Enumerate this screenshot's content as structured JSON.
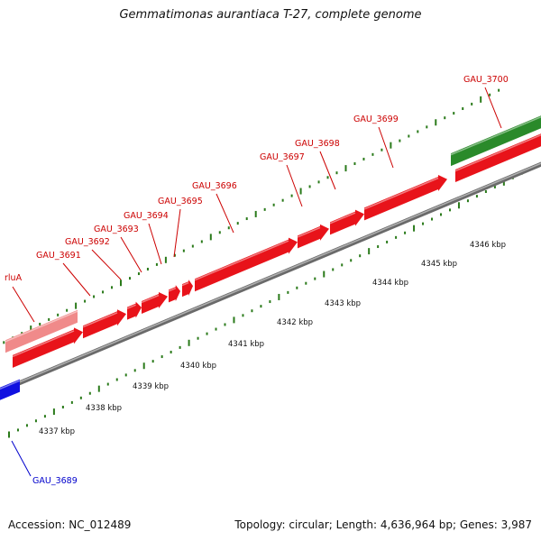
{
  "title": "Gemmatimonas aurantiaca T-27, complete genome",
  "footer": {
    "accession": "Accession: NC_012489",
    "summary": "Topology: circular; Length: 4,636,964 bp; Genes: 3,987"
  },
  "colors": {
    "forward_gene": "#e8131a",
    "forward_gene_light": "#f08a8a",
    "rna_gene": "#2a8a2a",
    "reverse_gene": "#1010e0",
    "forward_label": "#cc0000",
    "reverse_label": "#0000cc",
    "tick": "#2a7a1a",
    "backbone": "#8a8a8a"
  },
  "gene_labels": [
    {
      "text": "rluA",
      "strand": "forward"
    },
    {
      "text": "GAU_3691",
      "strand": "forward"
    },
    {
      "text": "GAU_3692",
      "strand": "forward"
    },
    {
      "text": "GAU_3693",
      "strand": "forward"
    },
    {
      "text": "GAU_3694",
      "strand": "forward"
    },
    {
      "text": "GAU_3695",
      "strand": "forward"
    },
    {
      "text": "GAU_3696",
      "strand": "forward"
    },
    {
      "text": "GAU_3697",
      "strand": "forward"
    },
    {
      "text": "GAU_3698",
      "strand": "forward"
    },
    {
      "text": "GAU_3699",
      "strand": "forward"
    },
    {
      "text": "GAU_3700",
      "strand": "forward"
    },
    {
      "text": "GAU_3689",
      "strand": "reverse"
    }
  ],
  "kbp_labels": [
    "4337 kbp",
    "4338 kbp",
    "4339 kbp",
    "4340 kbp",
    "4341 kbp",
    "4342 kbp",
    "4343 kbp",
    "4344 kbp",
    "4345 kbp",
    "4346 kbp"
  ]
}
